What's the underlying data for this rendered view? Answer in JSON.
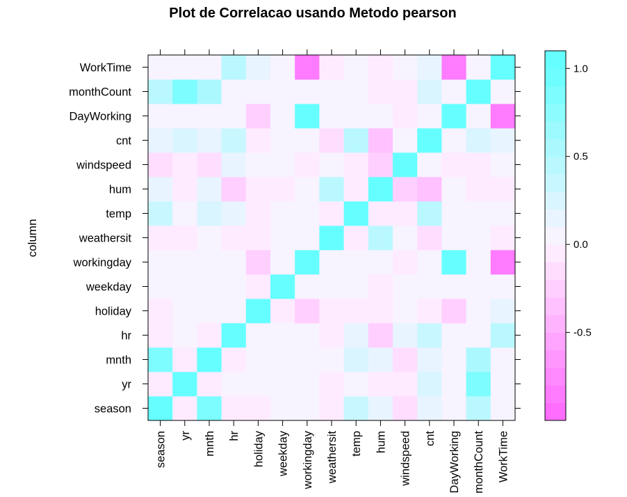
{
  "chart_data": {
    "type": "heatmap",
    "title": "Plot de Correlacao usando Metodo pearson",
    "ylabel": "column",
    "xlabel": "",
    "variables": [
      "season",
      "yr",
      "mnth",
      "hr",
      "holiday",
      "weekday",
      "workingday",
      "weathersit",
      "temp",
      "hum",
      "windspeed",
      "cnt",
      "DayWorking",
      "monthCount",
      "WorkTime"
    ],
    "x_tick_labels": [
      "season",
      "yr",
      "mnth",
      "hr",
      "holiday",
      "weekday",
      "workingday",
      "weathersit",
      "temp",
      "hum",
      "windspeed",
      "cnt",
      "DayWorking",
      "monthCount",
      "WorkTime"
    ],
    "y_tick_labels": [
      "WorkTime",
      "monthCount",
      "DayWorking",
      "cnt",
      "windspeed",
      "hum",
      "temp",
      "weathersit",
      "workingday",
      "weekday",
      "holiday",
      "hr",
      "mnth",
      "yr",
      "season"
    ],
    "matrix": [
      [
        1.0,
        -0.01,
        0.83,
        -0.01,
        -0.01,
        0.0,
        0.01,
        -0.01,
        0.31,
        0.15,
        -0.15,
        0.18,
        0.01,
        0.42,
        0.0
      ],
      [
        -0.01,
        1.0,
        -0.01,
        0.0,
        0.01,
        -0.0,
        -0.0,
        -0.02,
        0.04,
        -0.08,
        -0.01,
        0.25,
        0.0,
        0.86,
        0.0
      ],
      [
        0.83,
        -0.01,
        1.0,
        -0.01,
        0.02,
        0.01,
        -0.0,
        0.01,
        0.2,
        0.16,
        -0.14,
        0.12,
        0.0,
        0.5,
        0.0
      ],
      [
        -0.01,
        0.0,
        -0.01,
        1.0,
        0.0,
        -0.0,
        0.0,
        -0.02,
        0.14,
        -0.28,
        0.14,
        0.39,
        0.0,
        -0.0,
        0.42
      ],
      [
        -0.01,
        0.01,
        0.02,
        0.0,
        1.0,
        -0.1,
        -0.25,
        -0.02,
        -0.03,
        -0.01,
        0.0,
        -0.03,
        -0.25,
        0.0,
        0.14
      ],
      [
        0.0,
        -0.0,
        0.01,
        -0.0,
        -0.1,
        1.0,
        0.04,
        0.0,
        -0.0,
        -0.04,
        0.01,
        0.03,
        0.04,
        0.0,
        0.0
      ],
      [
        0.01,
        -0.0,
        -0.0,
        0.0,
        -0.25,
        0.04,
        1.0,
        0.04,
        0.06,
        0.02,
        -0.01,
        0.03,
        1.0,
        0.0,
        -0.85
      ],
      [
        -0.01,
        -0.02,
        0.01,
        -0.02,
        -0.02,
        0.0,
        0.04,
        1.0,
        -0.1,
        0.42,
        0.03,
        -0.14,
        0.04,
        0.0,
        -0.03
      ],
      [
        0.31,
        0.04,
        0.2,
        0.14,
        -0.03,
        -0.0,
        0.06,
        -0.1,
        1.0,
        -0.07,
        -0.02,
        0.4,
        0.06,
        0.05,
        0.01
      ],
      [
        0.15,
        -0.08,
        0.16,
        -0.28,
        -0.01,
        -0.04,
        0.02,
        0.42,
        -0.07,
        1.0,
        -0.29,
        -0.32,
        0.02,
        -0.04,
        -0.07
      ],
      [
        -0.15,
        -0.01,
        -0.14,
        0.14,
        0.0,
        0.01,
        -0.01,
        0.03,
        -0.02,
        -0.29,
        1.0,
        0.09,
        -0.01,
        -0.1,
        0.05
      ],
      [
        0.18,
        0.25,
        0.12,
        0.39,
        -0.03,
        0.03,
        0.03,
        -0.14,
        0.4,
        -0.32,
        0.09,
        1.0,
        0.03,
        0.2,
        0.1
      ],
      [
        0.01,
        0.0,
        0.0,
        0.0,
        -0.25,
        0.04,
        1.0,
        0.04,
        0.06,
        0.02,
        -0.01,
        0.03,
        1.0,
        0.0,
        -0.85
      ],
      [
        0.42,
        0.86,
        0.5,
        -0.0,
        0.0,
        0.0,
        0.0,
        0.0,
        0.05,
        -0.04,
        -0.1,
        0.2,
        0.0,
        1.0,
        0.0
      ],
      [
        0.0,
        0.0,
        0.0,
        0.42,
        0.14,
        0.0,
        -0.85,
        -0.03,
        0.01,
        -0.07,
        0.05,
        0.1,
        -0.85,
        0.0,
        1.0
      ]
    ],
    "colorbar": {
      "min": -1.0,
      "max": 1.1,
      "ticks": [
        1.0,
        0.5,
        0.0,
        -0.5
      ],
      "tick_labels": [
        "1.0",
        "0.5",
        "0.0",
        "-0.5"
      ],
      "low_color": "#ff66ff",
      "mid_color": "#fff2ff",
      "high_color": "#66ffff"
    },
    "grid": false
  }
}
